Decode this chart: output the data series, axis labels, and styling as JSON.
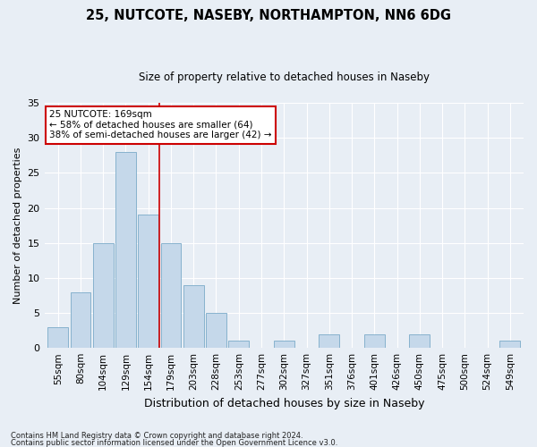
{
  "title1": "25, NUTCOTE, NASEBY, NORTHAMPTON, NN6 6DG",
  "title2": "Size of property relative to detached houses in Naseby",
  "xlabel": "Distribution of detached houses by size in Naseby",
  "ylabel": "Number of detached properties",
  "categories": [
    "55sqm",
    "80sqm",
    "104sqm",
    "129sqm",
    "154sqm",
    "179sqm",
    "203sqm",
    "228sqm",
    "253sqm",
    "277sqm",
    "302sqm",
    "327sqm",
    "351sqm",
    "376sqm",
    "401sqm",
    "426sqm",
    "450sqm",
    "475sqm",
    "500sqm",
    "524sqm",
    "549sqm"
  ],
  "values": [
    3,
    8,
    15,
    28,
    19,
    15,
    9,
    5,
    1,
    0,
    1,
    0,
    2,
    0,
    2,
    0,
    2,
    0,
    0,
    0,
    1
  ],
  "bar_color": "#c5d8ea",
  "bar_edge_color": "#7aaac8",
  "vline_x": 4.5,
  "vline_color": "#cc0000",
  "annotation_title": "25 NUTCOTE: 169sqm",
  "annotation_line1": "← 58% of detached houses are smaller (64)",
  "annotation_line2": "38% of semi-detached houses are larger (42) →",
  "annotation_box_color": "#ffffff",
  "annotation_box_edge": "#cc0000",
  "ylim": [
    0,
    35
  ],
  "yticks": [
    0,
    5,
    10,
    15,
    20,
    25,
    30,
    35
  ],
  "footer1": "Contains HM Land Registry data © Crown copyright and database right 2024.",
  "footer2": "Contains public sector information licensed under the Open Government Licence v3.0.",
  "bg_color": "#e8eef5",
  "plot_bg_color": "#e8eef5",
  "grid_color": "#ffffff",
  "title1_fontsize": 10.5,
  "title2_fontsize": 8.5,
  "xlabel_fontsize": 9,
  "ylabel_fontsize": 8,
  "tick_fontsize": 7.5,
  "annotation_fontsize": 7.5,
  "footer_fontsize": 6
}
